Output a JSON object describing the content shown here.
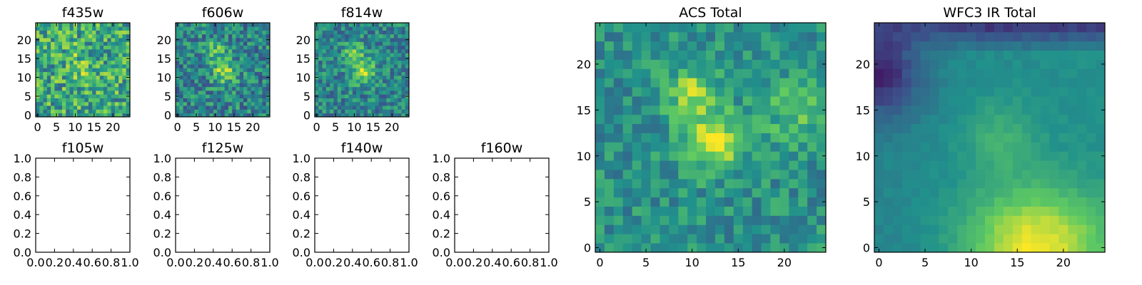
{
  "colormap": [
    "#440154",
    "#3b528b",
    "#21918c",
    "#5ec962",
    "#fde725"
  ],
  "chart_data": [
    {
      "id": "f435w",
      "type": "heatmap",
      "title": "f435w",
      "grid": [
        25,
        25
      ],
      "seed": 11,
      "noise": 0.55,
      "mode": "noisy",
      "xticks": [
        "0",
        "5",
        "10",
        "15",
        "20"
      ],
      "yticks": [
        "0",
        "5",
        "10",
        "15",
        "20"
      ],
      "xlim": [
        -0.5,
        24.5
      ],
      "ylim": [
        -0.5,
        24.5
      ]
    },
    {
      "id": "f606w",
      "type": "heatmap",
      "title": "f606w",
      "grid": [
        25,
        25
      ],
      "seed": 23,
      "noise": 0.45,
      "mode": "blob",
      "xticks": [
        "0",
        "5",
        "10",
        "15",
        "20"
      ],
      "yticks": [
        "0",
        "5",
        "10",
        "15",
        "20"
      ],
      "xlim": [
        -0.5,
        24.5
      ],
      "ylim": [
        -0.5,
        24.5
      ]
    },
    {
      "id": "f814w",
      "type": "heatmap",
      "title": "f814w",
      "grid": [
        25,
        25
      ],
      "seed": 37,
      "noise": 0.4,
      "mode": "blob",
      "xticks": [
        "0",
        "5",
        "10",
        "15",
        "20"
      ],
      "yticks": [
        "0",
        "5",
        "10",
        "15",
        "20"
      ],
      "xlim": [
        -0.5,
        24.5
      ],
      "ylim": [
        -0.5,
        24.5
      ]
    },
    {
      "id": "f105w",
      "type": "empty",
      "title": "f105w",
      "xticks": [
        "0.0",
        "0.2",
        "0.4",
        "0.6",
        "0.8",
        "1.0"
      ],
      "yticks": [
        "0.0",
        "0.2",
        "0.4",
        "0.6",
        "0.8",
        "1.0"
      ],
      "xlim": [
        0,
        1
      ],
      "ylim": [
        0,
        1
      ]
    },
    {
      "id": "f125w",
      "type": "empty",
      "title": "f125w",
      "xticks": [
        "0.0",
        "0.2",
        "0.4",
        "0.6",
        "0.8",
        "1.0"
      ],
      "yticks": [
        "0.0",
        "0.2",
        "0.4",
        "0.6",
        "0.8",
        "1.0"
      ],
      "xlim": [
        0,
        1
      ],
      "ylim": [
        0,
        1
      ]
    },
    {
      "id": "f140w",
      "type": "empty",
      "title": "f140w",
      "xticks": [
        "0.0",
        "0.2",
        "0.4",
        "0.6",
        "0.8",
        "1.0"
      ],
      "yticks": [
        "0.0",
        "0.2",
        "0.4",
        "0.6",
        "0.8",
        "1.0"
      ],
      "xlim": [
        0,
        1
      ],
      "ylim": [
        0,
        1
      ]
    },
    {
      "id": "f160w",
      "type": "empty",
      "title": "f160w",
      "xticks": [
        "0.0",
        "0.2",
        "0.4",
        "0.6",
        "0.8",
        "1.0"
      ],
      "yticks": [
        "0.0",
        "0.2",
        "0.4",
        "0.6",
        "0.8",
        "1.0"
      ],
      "xlim": [
        0,
        1
      ],
      "ylim": [
        0,
        1
      ]
    },
    {
      "id": "acs-total",
      "type": "heatmap",
      "title": "ACS Total",
      "grid": [
        25,
        25
      ],
      "seed": 51,
      "noise": 0.3,
      "mode": "blob-strong",
      "xticks": [
        "0",
        "5",
        "10",
        "15",
        "20"
      ],
      "yticks": [
        "0",
        "5",
        "10",
        "15",
        "20"
      ],
      "xlim": [
        -0.5,
        24.5
      ],
      "ylim": [
        -0.5,
        24.5
      ]
    },
    {
      "id": "wfc3-ir-total",
      "type": "heatmap",
      "title": "WFC3 IR Total",
      "grid": [
        25,
        25
      ],
      "seed": 67,
      "noise": 0.06,
      "mode": "smooth",
      "xticks": [
        "0",
        "5",
        "10",
        "15",
        "20"
      ],
      "yticks": [
        "0",
        "5",
        "10",
        "15",
        "20"
      ],
      "xlim": [
        -0.5,
        24.5
      ],
      "ylim": [
        -0.5,
        24.5
      ]
    }
  ]
}
